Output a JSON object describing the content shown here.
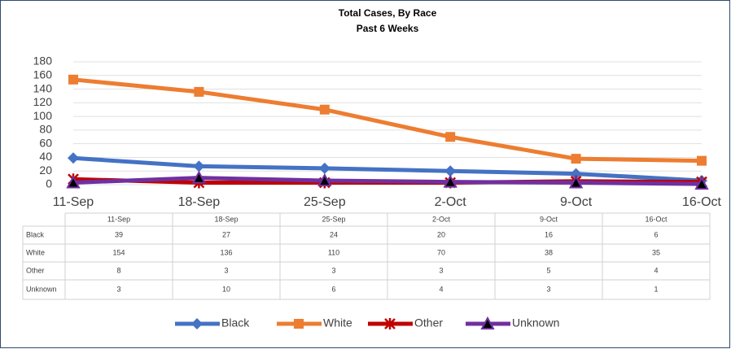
{
  "chart_data": {
    "type": "line",
    "title": "Total Cases, By Race",
    "subtitle": "Past 6 Weeks",
    "categories": [
      "11-Sep",
      "18-Sep",
      "25-Sep",
      "2-Oct",
      "9-Oct",
      "16-Oct"
    ],
    "series": [
      {
        "name": "Black",
        "color": "#4472c4",
        "marker": "diamond",
        "values": [
          39,
          27,
          24,
          20,
          16,
          6
        ]
      },
      {
        "name": "White",
        "color": "#ed7d31",
        "marker": "square",
        "values": [
          154,
          136,
          110,
          70,
          38,
          35
        ]
      },
      {
        "name": "Other",
        "color": "#c00000",
        "marker": "x",
        "values": [
          8,
          3,
          3,
          3,
          5,
          4
        ]
      },
      {
        "name": "Unknown",
        "color": "#7030a0",
        "marker": "triangle",
        "values": [
          3,
          10,
          6,
          4,
          3,
          1
        ]
      }
    ],
    "ylim": [
      0,
      180
    ],
    "yticks": [
      0,
      20,
      40,
      60,
      80,
      100,
      120,
      140,
      160,
      180
    ],
    "grid": true,
    "legend": "bottom"
  }
}
